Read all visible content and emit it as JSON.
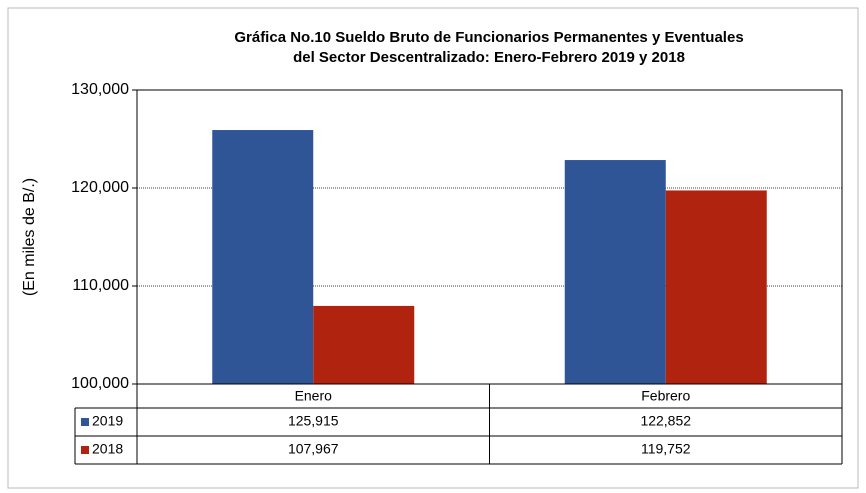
{
  "chart_data": {
    "type": "bar",
    "title": [
      "Gráfica No.10 Sueldo Bruto de Funcionarios Permanentes y Eventuales",
      "del Sector Descentralizado: Enero-Febrero 2019 y 2018"
    ],
    "y_label": "(En miles de B/.)",
    "categories": [
      "Enero",
      "Febrero"
    ],
    "series": [
      {
        "name": "2019",
        "color": "#2f5597",
        "values": [
          125915,
          122852
        ],
        "value_labels": [
          "125,915",
          "122,852"
        ]
      },
      {
        "name": "2018",
        "color": "#b0240f",
        "values": [
          107967,
          119752
        ],
        "value_labels": [
          "107,967",
          "119,752"
        ]
      }
    ],
    "ylim": [
      100000,
      130000
    ],
    "yticks": [
      {
        "value": 100000,
        "label": "100,000"
      },
      {
        "value": 110000,
        "label": "110,000"
      },
      {
        "value": 120000,
        "label": "120,000"
      },
      {
        "value": 130000,
        "label": "130,000"
      }
    ],
    "grid": true,
    "legend": "table"
  }
}
